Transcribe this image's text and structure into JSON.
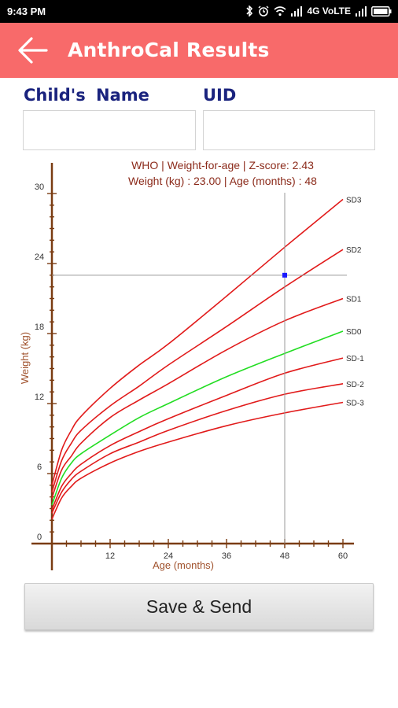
{
  "status_bar": {
    "time": "9:43 PM",
    "network": "4G VoLTE"
  },
  "app_bar": {
    "title": "AnthroCal Results"
  },
  "form": {
    "child_name_label": "Child's  Name",
    "child_name_value": "",
    "uid_label": "UID",
    "uid_value": ""
  },
  "chart_data": {
    "type": "line",
    "title": "WHO | Weight-for-age |  Z-score:  2.43",
    "subtitle": "Weight (kg) :  23.00   | Age (months) : 48",
    "xlabel": "Age (months)",
    "ylabel": "Weight (kg)",
    "xlim": [
      0,
      60
    ],
    "ylim": [
      0,
      30
    ],
    "x_ticks": [
      12,
      24,
      36,
      48,
      60
    ],
    "y_ticks": [
      0,
      6,
      12,
      18,
      24,
      30
    ],
    "colors": {
      "sd0": "#22dd22",
      "other_sd": "#e11a1a",
      "axis": "#7a3c12",
      "point": "#1a1aff",
      "crosshair": "#9a9a9a"
    },
    "x": [
      0,
      2,
      4,
      6,
      12,
      18,
      24,
      36,
      48,
      60
    ],
    "series": [
      {
        "name": "SD3",
        "values": [
          5.0,
          8.0,
          9.7,
          10.9,
          13.3,
          15.3,
          17.1,
          21.2,
          25.4,
          29.5
        ]
      },
      {
        "name": "SD2",
        "values": [
          4.4,
          7.1,
          8.6,
          9.7,
          11.8,
          13.5,
          15.3,
          18.6,
          22.0,
          25.2
        ]
      },
      {
        "name": "SD1",
        "values": [
          3.9,
          6.3,
          7.5,
          8.6,
          10.8,
          12.3,
          13.7,
          16.6,
          19.1,
          21.0
        ]
      },
      {
        "name": "SD0",
        "values": [
          3.3,
          5.6,
          6.9,
          7.7,
          9.3,
          10.8,
          12.0,
          14.3,
          16.3,
          18.2
        ]
      },
      {
        "name": "SD-1",
        "values": [
          2.9,
          4.9,
          6.0,
          6.8,
          8.4,
          9.6,
          10.7,
          12.7,
          14.6,
          15.9
        ]
      },
      {
        "name": "SD-2",
        "values": [
          2.6,
          4.4,
          5.5,
          6.2,
          7.7,
          8.7,
          9.7,
          11.4,
          12.8,
          13.7
        ]
      },
      {
        "name": "SD-3",
        "values": [
          2.1,
          3.9,
          4.9,
          5.6,
          6.9,
          7.9,
          8.7,
          10.1,
          11.2,
          12.1
        ]
      }
    ],
    "point": {
      "x": 48,
      "y": 23.0
    }
  },
  "actions": {
    "save_send_label": "Save & Send"
  }
}
